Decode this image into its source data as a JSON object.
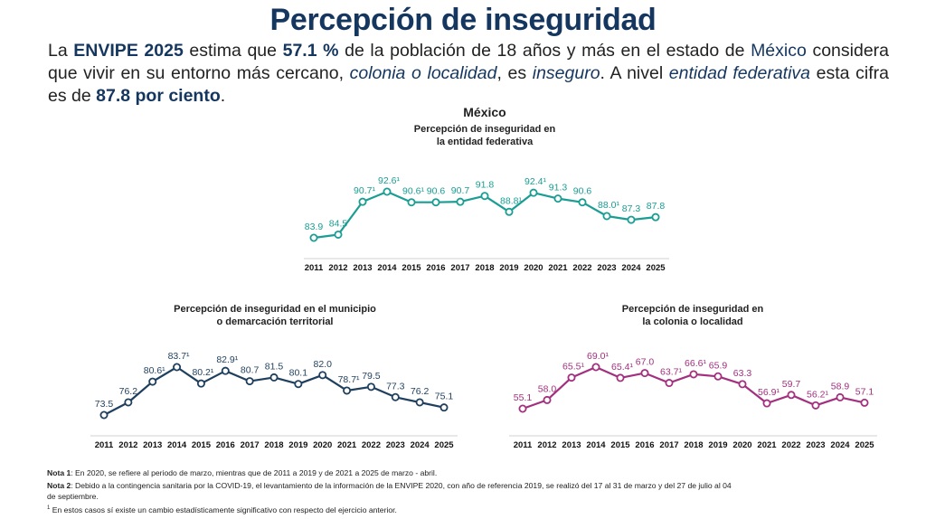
{
  "header": {
    "title": "Percepción de inseguridad"
  },
  "intro": {
    "p1": "La ",
    "envipe": "ENVIPE 2025",
    "p2": " estima que ",
    "pct_local": "57.1 %",
    "p3": " de la población de 18 años y más en el estado de ",
    "state": "México",
    "p4": " considera que vivir en su entorno más cercano, ",
    "colonia": "colonia o localidad",
    "p5": ", es ",
    "inseguro": "inseguro",
    "p6": ". A nivel ",
    "entidad": "entidad federativa",
    "p7": " esta cifra es de ",
    "pct_entidad": "87.8 por ciento",
    "p8": "."
  },
  "state_label": "México",
  "colors": {
    "title": "#14365f",
    "entidad": "#1a9e93",
    "municipio": "#1e3f5e",
    "colonia": "#a3307f"
  },
  "chart_data": [
    {
      "id": "entidad",
      "type": "line",
      "title": "Percepción de inseguridad en la entidad federativa",
      "title_lines": [
        "Percepción de inseguridad en",
        "la entidad federativa"
      ],
      "xlabel": "",
      "ylabel": "",
      "grid": false,
      "categories": [
        "2011",
        "2012",
        "2013",
        "2014",
        "2015",
        "2016",
        "2017",
        "2018",
        "2019",
        "2020",
        "2021",
        "2022",
        "2023",
        "2024",
        "2025"
      ],
      "values": [
        83.9,
        84.5,
        90.7,
        92.6,
        90.6,
        90.6,
        90.7,
        91.8,
        88.8,
        92.4,
        91.3,
        90.6,
        88.0,
        87.3,
        87.8
      ],
      "significant": [
        false,
        false,
        true,
        true,
        true,
        false,
        false,
        false,
        true,
        true,
        false,
        false,
        true,
        false,
        false
      ],
      "ylim": [
        80,
        95
      ],
      "color": "#1a9e93"
    },
    {
      "id": "municipio",
      "type": "line",
      "title": "Percepción de inseguridad en el municipio o demarcación territorial",
      "title_lines": [
        "Percepción de inseguridad en el municipio",
        "o demarcación territorial"
      ],
      "xlabel": "",
      "ylabel": "",
      "grid": false,
      "categories": [
        "2011",
        "2012",
        "2013",
        "2014",
        "2015",
        "2016",
        "2017",
        "2018",
        "2019",
        "2020",
        "2021",
        "2022",
        "2023",
        "2024",
        "2025"
      ],
      "values": [
        73.5,
        76.2,
        80.6,
        83.7,
        80.2,
        82.9,
        80.7,
        81.5,
        80.1,
        82.0,
        78.7,
        79.5,
        77.3,
        76.2,
        75.1
      ],
      "significant": [
        false,
        false,
        true,
        true,
        true,
        true,
        false,
        false,
        false,
        false,
        true,
        false,
        false,
        false,
        false
      ],
      "ylim": [
        68,
        88
      ],
      "color": "#1e3f5e"
    },
    {
      "id": "colonia",
      "type": "line",
      "title": "Percepción de inseguridad en la colonia o localidad",
      "title_lines": [
        "Percepción de inseguridad en",
        "la colonia o localidad"
      ],
      "xlabel": "",
      "ylabel": "",
      "grid": false,
      "categories": [
        "2011",
        "2012",
        "2013",
        "2014",
        "2015",
        "2016",
        "2017",
        "2018",
        "2019",
        "2020",
        "2021",
        "2022",
        "2023",
        "2024",
        "2025"
      ],
      "values": [
        55.1,
        58.0,
        65.5,
        69.0,
        65.4,
        67.0,
        63.7,
        66.6,
        65.9,
        63.3,
        56.9,
        59.7,
        56.2,
        58.9,
        57.1
      ],
      "significant": [
        false,
        false,
        true,
        true,
        true,
        false,
        true,
        true,
        false,
        false,
        true,
        false,
        true,
        false,
        false
      ],
      "ylim": [
        48,
        73
      ],
      "color": "#a3307f"
    }
  ],
  "notes": {
    "n1_label": "Nota 1",
    "n1_text": ": En 2020, se refiere al periodo de marzo, mientras que de 2011 a 2019 y de 2021 a 2025 de marzo - abril.",
    "n2_label": "Nota 2",
    "n2_text": ": Debido a la contingencia sanitaria por la COVID-19, el levantamiento de la información de la ENVIPE 2020, con año de referencia 2019, se realizó del 17 al 31 de marzo y del 27 de julio al 04 de septiembre.",
    "n3_sup": "1",
    "n3_text": " En estos casos sí existe un cambio estadísticamente significativo con respecto del ejercicio anterior."
  },
  "significance_marker": "¹"
}
